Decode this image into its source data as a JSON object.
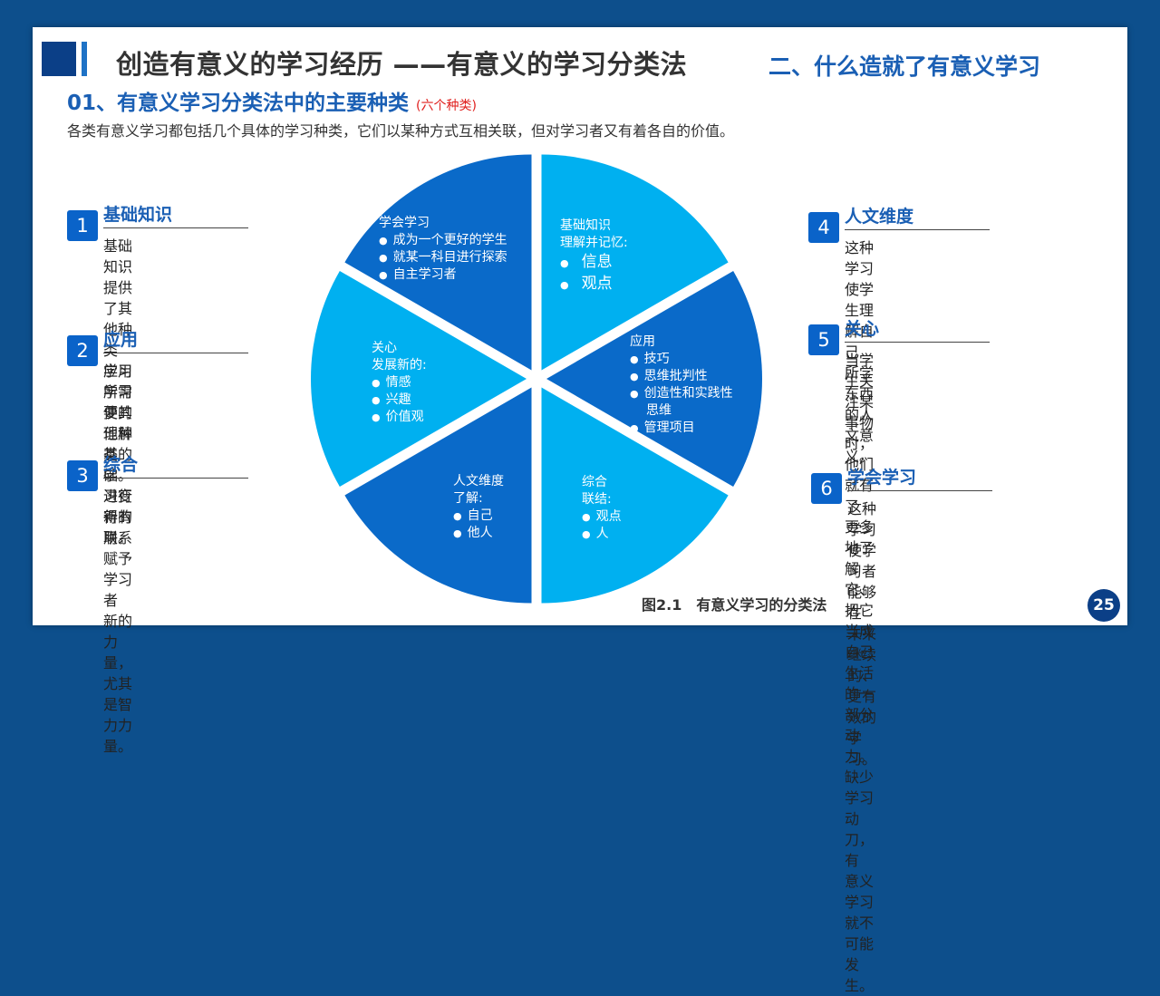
{
  "header": {
    "main_title": "创造有意义的学习经历 ——有意义的学习分类法",
    "section_title": "二、什么造就了有意义学习"
  },
  "subheading": {
    "title": "01、有意义学习分类法中的主要种类",
    "note": "(六个种类)"
  },
  "intro": "各类有意义学习都包括几个具体的学习种类，它们以某种方式互相关联，但对学习者又有着各自的价值。",
  "left_items": [
    {
      "num": "1",
      "title": "基础知识",
      "desc_lines": [
        "基础知识提供了其他种类",
        "学习所需要的理解基础。"
      ]
    },
    {
      "num": "2",
      "title": "应用",
      "desc_lines": [
        "应用学习使其他种类的学",
        "习变得有用。"
      ]
    },
    {
      "num": "3",
      "title": "综合",
      "desc_lines": [
        "进行新的联系赋予学习者",
        "新的力量，尤其是智力力",
        "量。"
      ]
    }
  ],
  "right_items": [
    {
      "num": "4",
      "title": "人文维度",
      "desc_lines": [
        "这种学习使学生理解自己",
        "所学东西的人文意义。"
      ]
    },
    {
      "num": "5",
      "title": "关心",
      "desc_lines": [
        "当学生关注某事物时，他们就有了",
        "更多地了解它、把它当成自己生活",
        "的一部分动力。缺少学习动刀，有",
        "意义学习就不可能发生。"
      ]
    },
    {
      "num": "6",
      "title": "学会学习",
      "desc_lines": [
        "这种学习使学习者能够在",
        "未来继续的、更有效的学",
        "习。"
      ]
    }
  ],
  "pie": {
    "colors": {
      "light": "#00b0f0",
      "dark": "#0a6ac9"
    },
    "wedges": [
      {
        "heading": [
          "基础知识",
          "理解并记忆:"
        ],
        "bullets": [
          "信息",
          "观点"
        ]
      },
      {
        "heading": [
          "应用"
        ],
        "bullets": [
          "技巧",
          "思维批判性",
          "创造性和实践性",
          "思维",
          "管理项目"
        ]
      },
      {
        "heading": [
          "综合",
          "联结:"
        ],
        "bullets": [
          "观点",
          "人"
        ]
      },
      {
        "heading": [
          "人文维度",
          "了解:"
        ],
        "bullets": [
          "自己",
          "他人"
        ]
      },
      {
        "heading": [
          "关心",
          "发展新的:"
        ],
        "bullets": [
          "情感",
          "兴趣",
          "价值观"
        ]
      },
      {
        "heading": [
          "学会学习"
        ],
        "bullets": [
          "成为一个更好的学生",
          "就某一科目进行探索",
          "自主学习者"
        ]
      }
    ]
  },
  "caption": "图2.1　有意义学习的分类法",
  "page_number": "25"
}
